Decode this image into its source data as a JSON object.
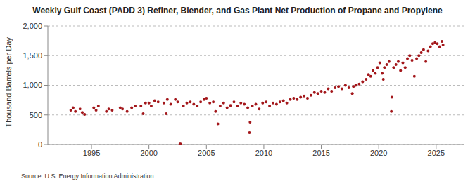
{
  "chart_data": {
    "type": "scatter",
    "title": "Weekly Gulf Coast (PADD 3) Refiner, Blender, and Gas Plant Net Production of Propane and Propylene",
    "y_label": "Thousand Barrels per Day",
    "source": "Source: U.S. Energy Information Administration",
    "color": "#a3171b",
    "marker": "circle",
    "grid": true,
    "xlim": [
      1991.2,
      2027.4
    ],
    "xticks": [
      1995,
      2000,
      2005,
      2010,
      2015,
      2020,
      2025
    ],
    "ylim": [
      0,
      2000
    ],
    "yticks": [
      0,
      500,
      {
        "value": 1000,
        "label": "1,000"
      },
      {
        "value": 1500,
        "label": "1,500"
      },
      {
        "value": 2000,
        "label": "2,000"
      }
    ],
    "x": [
      1993.2,
      1993.4,
      1993.6,
      1994.0,
      1994.2,
      1994.4,
      1995.2,
      1995.4,
      1995.6,
      1996.3,
      1996.5,
      1996.8,
      1997.5,
      1997.7,
      1998.1,
      1998.5,
      1998.8,
      1999.3,
      1999.5,
      1999.7,
      2000.0,
      2000.2,
      2000.5,
      2000.8,
      2001.3,
      2001.5,
      2001.6,
      2001.9,
      2002.3,
      2002.5,
      2002.7,
      2002.75,
      2003.0,
      2003.3,
      2003.6,
      2003.9,
      2004.2,
      2004.5,
      2004.8,
      2005.0,
      2005.3,
      2005.6,
      2005.8,
      2006.0,
      2006.2,
      2006.5,
      2006.8,
      2007.1,
      2007.4,
      2007.7,
      2008.0,
      2008.3,
      2008.6,
      2008.75,
      2008.8,
      2009.0,
      2009.3,
      2009.6,
      2009.9,
      2010.2,
      2010.5,
      2010.8,
      2011.1,
      2011.4,
      2011.7,
      2012.0,
      2012.3,
      2012.6,
      2012.9,
      2013.2,
      2013.5,
      2013.8,
      2014.1,
      2014.4,
      2014.7,
      2015.0,
      2015.3,
      2015.6,
      2015.9,
      2016.2,
      2016.5,
      2016.8,
      2017.1,
      2017.4,
      2017.7,
      2017.8,
      2018.0,
      2018.3,
      2018.6,
      2018.9,
      2019.1,
      2019.3,
      2019.5,
      2019.7,
      2019.9,
      2020.1,
      2020.3,
      2020.4,
      2020.5,
      2020.7,
      2020.9,
      2021.1,
      2021.15,
      2021.3,
      2021.5,
      2021.7,
      2021.9,
      2022.1,
      2022.3,
      2022.5,
      2022.7,
      2022.9,
      2023.1,
      2023.3,
      2023.5,
      2023.7,
      2023.9,
      2024.1,
      2024.3,
      2024.5,
      2024.7,
      2024.9,
      2025.1,
      2025.3,
      2025.5,
      2025.6
    ],
    "values": [
      580,
      620,
      560,
      600,
      540,
      510,
      620,
      580,
      650,
      560,
      600,
      580,
      620,
      600,
      560,
      620,
      650,
      650,
      520,
      700,
      700,
      650,
      740,
      720,
      700,
      520,
      760,
      680,
      760,
      720,
      10,
      10,
      650,
      700,
      720,
      680,
      650,
      720,
      760,
      780,
      700,
      720,
      560,
      350,
      650,
      700,
      620,
      660,
      720,
      650,
      700,
      680,
      620,
      200,
      380,
      650,
      680,
      600,
      700,
      720,
      650,
      700,
      680,
      720,
      740,
      700,
      760,
      780,
      760,
      800,
      820,
      780,
      830,
      880,
      860,
      900,
      880,
      940,
      900,
      960,
      980,
      940,
      1000,
      960,
      860,
      980,
      1000,
      1020,
      1060,
      1100,
      1180,
      1150,
      1250,
      1200,
      1300,
      1380,
      1200,
      1100,
      1300,
      1350,
      1400,
      560,
      800,
      1300,
      1350,
      1400,
      1250,
      1380,
      1300,
      1450,
      1500,
      1420,
      1150,
      1450,
      1500,
      1550,
      1600,
      1400,
      1580,
      1650,
      1700,
      1720,
      1700,
      1650,
      1740,
      1680
    ]
  }
}
